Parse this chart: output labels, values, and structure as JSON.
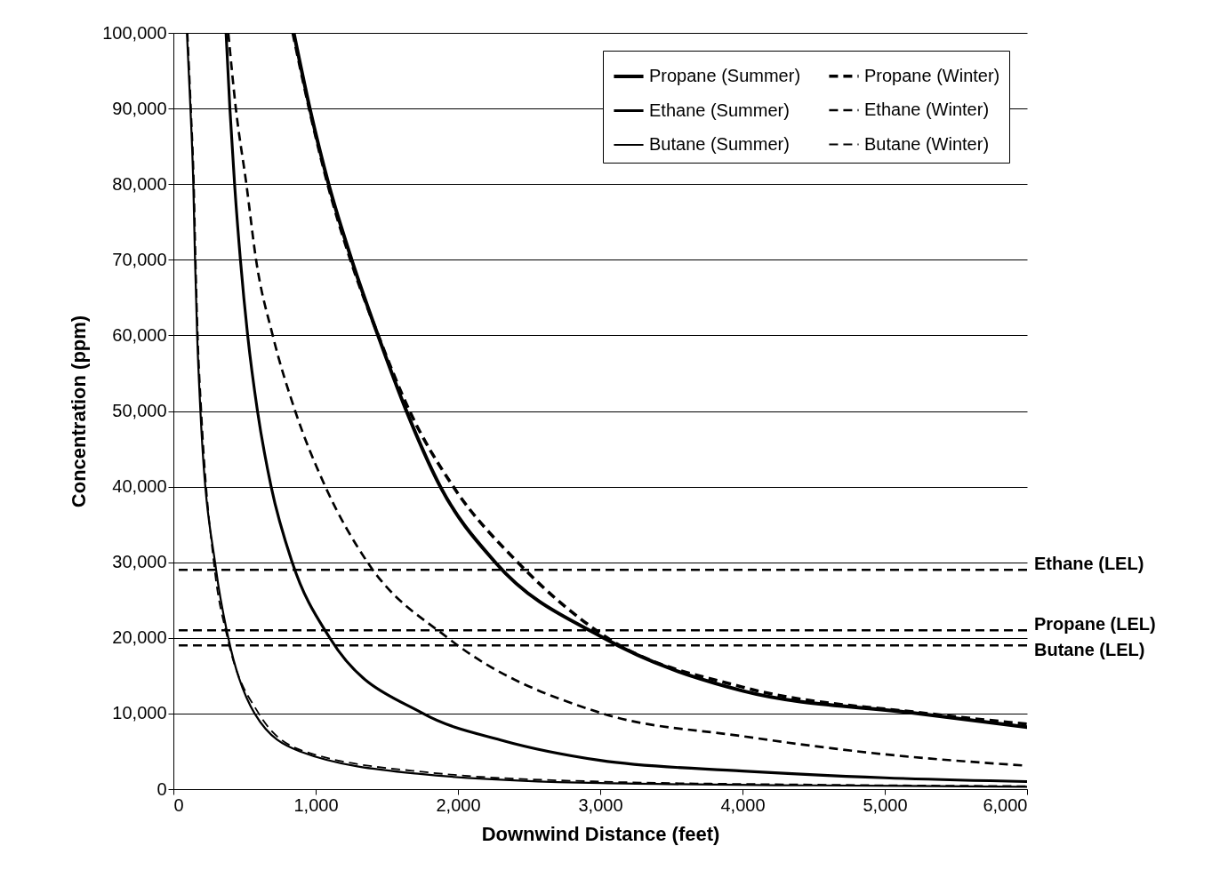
{
  "chart_data": {
    "type": "line",
    "xlabel": "Downwind Distance (feet)",
    "ylabel": "Concentration (ppm)",
    "xlim": [
      0,
      6000
    ],
    "ylim": [
      0,
      100000
    ],
    "xticks": [
      {
        "value": 0,
        "label": "0"
      },
      {
        "value": 1000,
        "label": "1,000"
      },
      {
        "value": 2000,
        "label": "2,000"
      },
      {
        "value": 3000,
        "label": "3,000"
      },
      {
        "value": 4000,
        "label": "4,000"
      },
      {
        "value": 5000,
        "label": "5,000"
      },
      {
        "value": 6000,
        "label": "6,000"
      }
    ],
    "yticks": [
      {
        "value": 0,
        "label": "0"
      },
      {
        "value": 10000,
        "label": "10,000"
      },
      {
        "value": 20000,
        "label": "20,000"
      },
      {
        "value": 30000,
        "label": "30,000"
      },
      {
        "value": 40000,
        "label": "40,000"
      },
      {
        "value": 50000,
        "label": "50,000"
      },
      {
        "value": 60000,
        "label": "60,000"
      },
      {
        "value": 70000,
        "label": "70,000"
      },
      {
        "value": 80000,
        "label": "80,000"
      },
      {
        "value": 90000,
        "label": "90,000"
      },
      {
        "value": 100000,
        "label": "100,000"
      }
    ],
    "grid": "y",
    "legend": "top right",
    "marker": "none",
    "series": [
      {
        "name": "Propane (Summer)",
        "color": "#000000",
        "line_style": "solid",
        "x": [
          846,
          959,
          1091,
          1253,
          1438,
          1638,
          1876,
          2262,
          3023,
          4000,
          5238,
          6000
        ],
        "values": [
          100000,
          90000,
          80000,
          70000,
          60000,
          50000,
          40000,
          30000,
          20000,
          13000,
          10000,
          8200
        ]
      },
      {
        "name": "Propane (Winter)",
        "color": "#000000",
        "line_style": "dashed",
        "x": [
          840,
          955,
          1085,
          1245,
          1440,
          1660,
          1967,
          2420,
          3050,
          4000,
          5300,
          6000
        ],
        "values": [
          100000,
          90000,
          80000,
          70000,
          60000,
          50000,
          40000,
          30000,
          20000,
          13500,
          10000,
          8600
        ]
      },
      {
        "name": "Ethane (Summer)",
        "color": "#000000",
        "line_style": "solid",
        "x": [
          370,
          397,
          430,
          471,
          522,
          591,
          687,
          835,
          1099,
          1755,
          2300,
          3000,
          4000,
          5000,
          6000
        ],
        "values": [
          100000,
          90000,
          80000,
          70000,
          60000,
          50000,
          40000,
          30000,
          20000,
          10000,
          6500,
          3800,
          2400,
          1500,
          1000
        ]
      },
      {
        "name": "Ethane (Winter)",
        "color": "#000000",
        "line_style": "dashed",
        "x": [
          386,
          439,
          513,
          581,
          698,
          856,
          1068,
          1364,
          1929,
          3000,
          4000,
          5000,
          6000
        ],
        "values": [
          100000,
          90000,
          80000,
          70000,
          60000,
          50000,
          40000,
          30000,
          20000,
          10100,
          7000,
          4600,
          3100
        ]
      },
      {
        "name": "Butane (Summer)",
        "color": "#000000",
        "line_style": "solid",
        "x": [
          95,
          120,
          140,
          152,
          167,
          190,
          300,
          386,
          571,
          888,
          1734,
          3000,
          4500,
          6000
        ],
        "values": [
          100000,
          90000,
          80000,
          70000,
          60000,
          50000,
          29000,
          20000,
          10000,
          5000,
          2000,
          800,
          500,
          300
        ]
      },
      {
        "name": "Butane (Winter)",
        "color": "#000000",
        "line_style": "dashed",
        "x": [
          100,
          124,
          145,
          157,
          172,
          197,
          290,
          380,
          600,
          920,
          1800,
          3000,
          4500,
          6000
        ],
        "values": [
          100000,
          90000,
          80000,
          70000,
          60000,
          50000,
          29000,
          20000,
          10000,
          5000,
          2200,
          1000,
          600,
          400
        ]
      }
    ],
    "ref_lines": [
      {
        "axis": "y",
        "value": 29000,
        "label": "Ethane (LEL)",
        "line_style": "dashed",
        "color": "#000000"
      },
      {
        "axis": "y",
        "value": 21000,
        "label": "Propane (LEL)",
        "line_style": "dashed",
        "color": "#000000"
      },
      {
        "axis": "y",
        "value": 19000,
        "label": "Butane (LEL)",
        "line_style": "dashed",
        "color": "#000000"
      }
    ]
  }
}
